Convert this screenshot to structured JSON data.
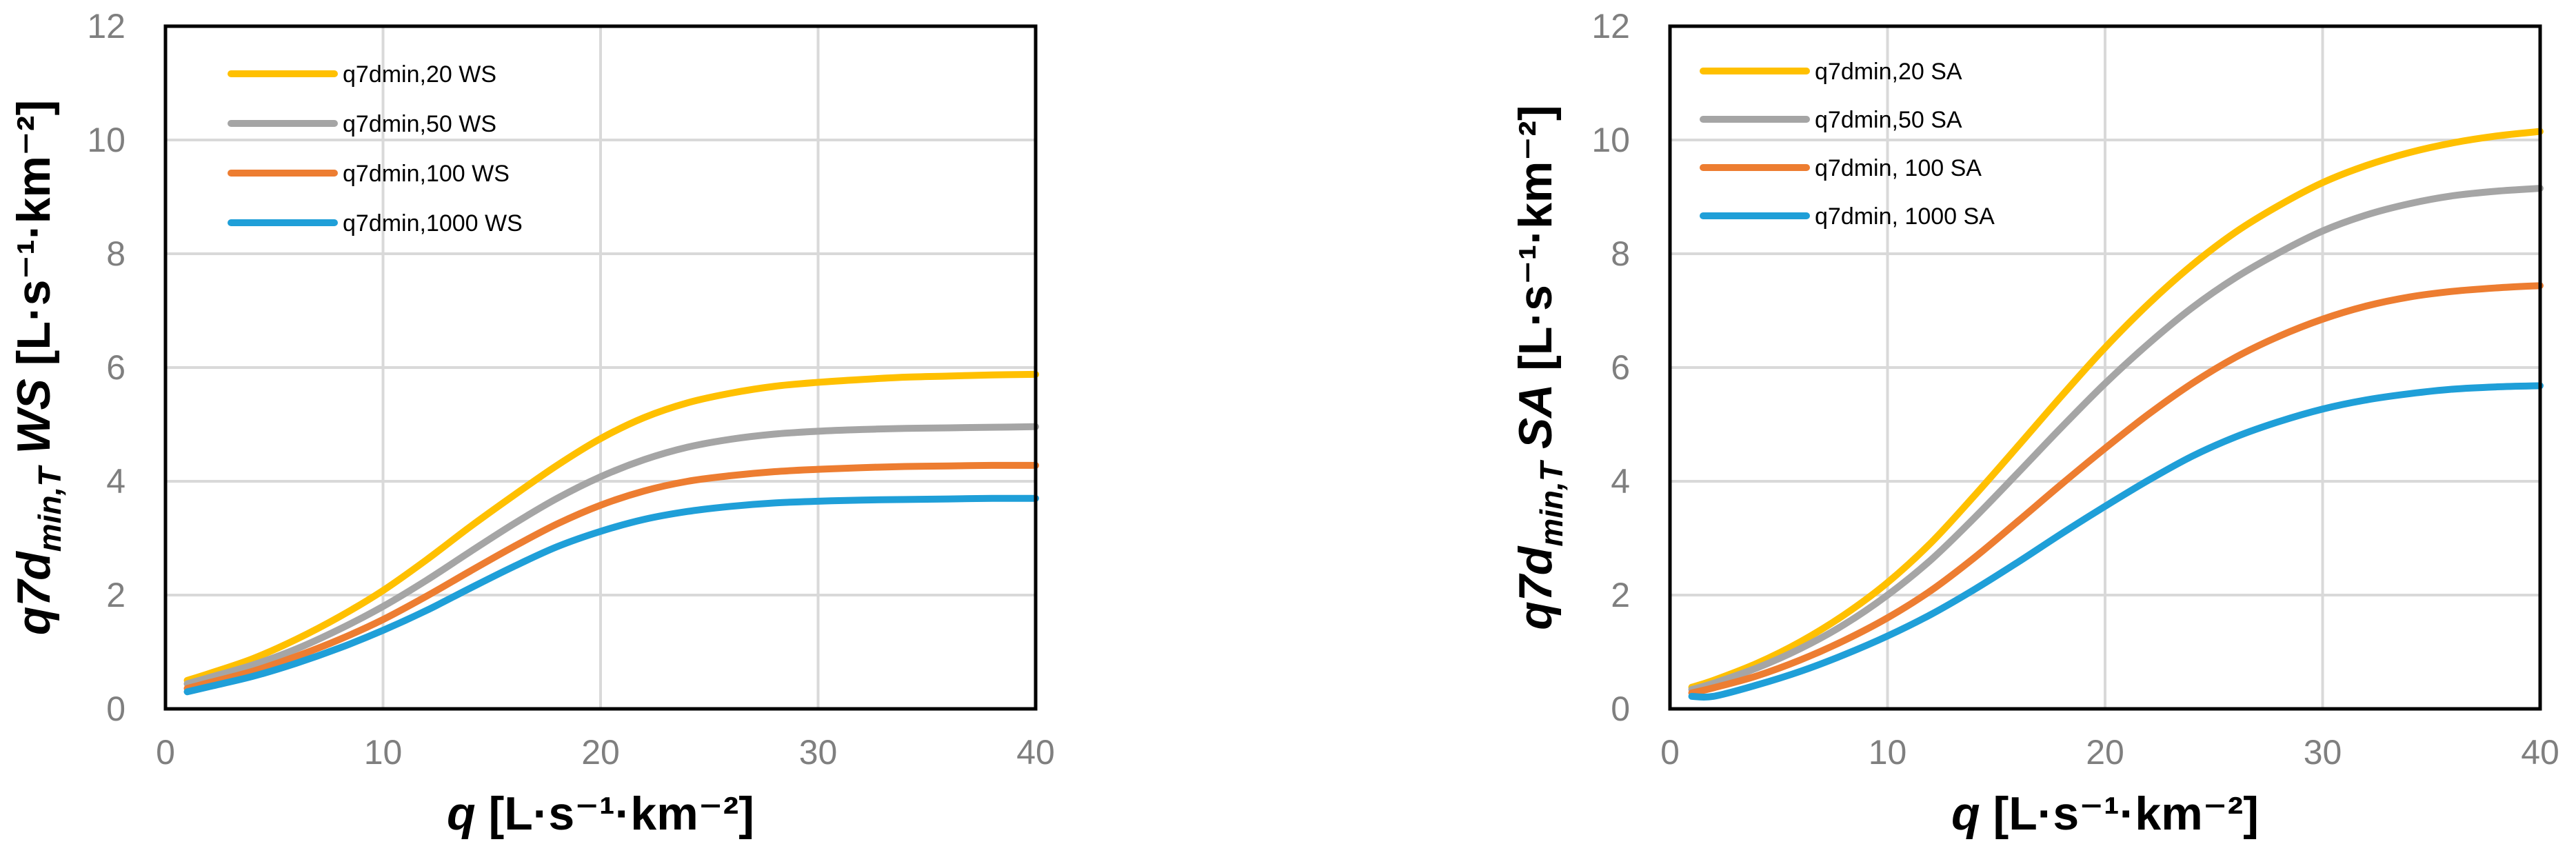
{
  "chart_data": [
    {
      "type": "line",
      "title": "",
      "xlabel": {
        "main": "q",
        "unit": "[L·s⁻¹·km⁻²]"
      },
      "ylabel": {
        "main": "q7d",
        "sub": "min,T",
        "suffix": "WS",
        "unit": "[L·s⁻¹·km⁻²]"
      },
      "xlim": [
        0,
        40
      ],
      "ylim": [
        0,
        12
      ],
      "xticks": [
        0,
        10,
        20,
        30,
        40
      ],
      "yticks": [
        0,
        2,
        4,
        6,
        8,
        10,
        12
      ],
      "grid": true,
      "legend_position": "top-left",
      "x": [
        1,
        2,
        4,
        6,
        8,
        10,
        12,
        14,
        16,
        18,
        20,
        22,
        24,
        26,
        28,
        30,
        32,
        34,
        36,
        38,
        40
      ],
      "series": [
        {
          "name": "q7dmin,20 WS",
          "color": "#FFC000",
          "values": [
            0.5,
            0.62,
            0.88,
            1.22,
            1.62,
            2.08,
            2.62,
            3.2,
            3.75,
            4.28,
            4.75,
            5.12,
            5.38,
            5.55,
            5.67,
            5.74,
            5.79,
            5.83,
            5.85,
            5.87,
            5.88
          ]
        },
        {
          "name": "q7dmin,50 WS",
          "color": "#A5A5A5",
          "values": [
            0.44,
            0.55,
            0.77,
            1.05,
            1.4,
            1.8,
            2.26,
            2.76,
            3.25,
            3.7,
            4.08,
            4.38,
            4.6,
            4.74,
            4.83,
            4.88,
            4.91,
            4.93,
            4.94,
            4.95,
            4.96
          ]
        },
        {
          "name": "q7dmin,100 WS",
          "color": "#ED7D31",
          "values": [
            0.36,
            0.46,
            0.66,
            0.92,
            1.22,
            1.57,
            1.98,
            2.42,
            2.85,
            3.25,
            3.58,
            3.83,
            4.0,
            4.1,
            4.17,
            4.21,
            4.24,
            4.26,
            4.27,
            4.28,
            4.28
          ]
        },
        {
          "name": "q7dmin,1000 WS",
          "color": "#1F9FD8",
          "values": [
            0.3,
            0.39,
            0.57,
            0.8,
            1.07,
            1.38,
            1.73,
            2.12,
            2.5,
            2.85,
            3.12,
            3.33,
            3.47,
            3.56,
            3.62,
            3.65,
            3.67,
            3.68,
            3.69,
            3.7,
            3.7
          ]
        }
      ]
    },
    {
      "type": "line",
      "title": "",
      "xlabel": {
        "main": "q",
        "unit": "[L·s⁻¹·km⁻²]"
      },
      "ylabel": {
        "main": "q7d",
        "sub": "min,T",
        "suffix": "SA",
        "unit": "[L·s⁻¹·km⁻²]"
      },
      "xlim": [
        0,
        40
      ],
      "ylim": [
        0,
        12
      ],
      "xticks": [
        0,
        10,
        20,
        30,
        40
      ],
      "yticks": [
        0,
        2,
        4,
        6,
        8,
        10,
        12
      ],
      "grid": true,
      "legend_position": "top-left",
      "x": [
        1,
        2,
        4,
        6,
        8,
        10,
        12,
        14,
        16,
        18,
        20,
        22,
        24,
        26,
        28,
        30,
        32,
        34,
        36,
        38,
        40
      ],
      "series": [
        {
          "name": "q7dmin,20 SA",
          "color": "#FFC000",
          "values": [
            0.38,
            0.5,
            0.8,
            1.18,
            1.65,
            2.22,
            2.92,
            3.75,
            4.62,
            5.5,
            6.35,
            7.12,
            7.8,
            8.38,
            8.85,
            9.25,
            9.55,
            9.78,
            9.95,
            10.07,
            10.15
          ]
        },
        {
          "name": "q7dmin,50 SA",
          "color": "#A5A5A5",
          "values": [
            0.34,
            0.45,
            0.72,
            1.06,
            1.48,
            2.0,
            2.62,
            3.36,
            4.15,
            4.95,
            5.72,
            6.42,
            7.05,
            7.58,
            8.02,
            8.4,
            8.68,
            8.88,
            9.02,
            9.1,
            9.15
          ]
        },
        {
          "name": "q7dmin, 100 SA",
          "color": "#ED7D31",
          "values": [
            0.28,
            0.37,
            0.58,
            0.86,
            1.2,
            1.6,
            2.08,
            2.66,
            3.3,
            3.95,
            4.58,
            5.18,
            5.72,
            6.18,
            6.55,
            6.85,
            7.08,
            7.24,
            7.34,
            7.4,
            7.44
          ]
        },
        {
          "name": "q7dmin, 1000 SA",
          "color": "#1F9FD8",
          "values": [
            0.22,
            0.22,
            0.42,
            0.66,
            0.95,
            1.28,
            1.66,
            2.1,
            2.58,
            3.08,
            3.56,
            4.02,
            4.44,
            4.78,
            5.05,
            5.27,
            5.43,
            5.54,
            5.62,
            5.66,
            5.68
          ]
        }
      ]
    }
  ]
}
